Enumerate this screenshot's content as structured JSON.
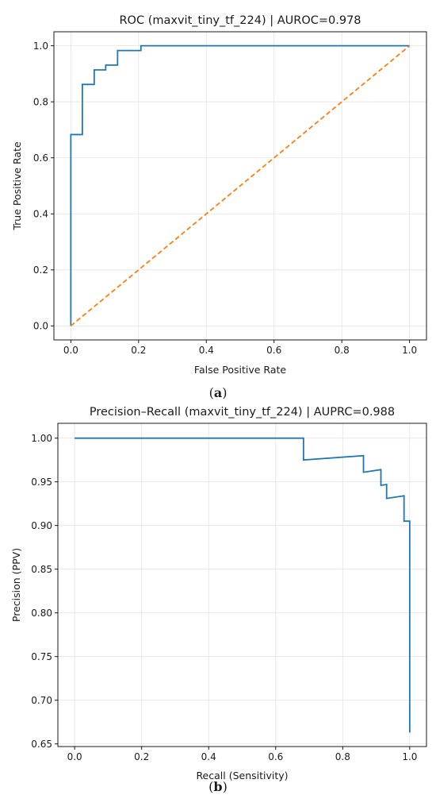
{
  "chart_data": [
    {
      "type": "line",
      "title": "ROC (maxvit_tiny_tf_224) | AUROC=0.978",
      "xlabel": "False Positive Rate",
      "ylabel": "True Positive Rate",
      "xlim": [
        -0.05,
        1.05
      ],
      "ylim": [
        -0.05,
        1.05
      ],
      "xticks": [
        0.0,
        0.2,
        0.4,
        0.6,
        0.8,
        1.0
      ],
      "yticks": [
        0.0,
        0.2,
        0.4,
        0.6,
        0.8,
        1.0
      ],
      "xtick_labels": [
        "0.0",
        "0.2",
        "0.4",
        "0.6",
        "0.8",
        "1.0"
      ],
      "ytick_labels": [
        "0.0",
        "0.2",
        "0.4",
        "0.6",
        "0.8",
        "1.0"
      ],
      "grid": true,
      "caption": {
        "open": "(",
        "letter": "a",
        "close": ")"
      },
      "series": [
        {
          "color": "#1f77b4",
          "dash": false,
          "x": [
            0,
            0,
            0.034,
            0.034,
            0.069,
            0.069,
            0.103,
            0.103,
            0.138,
            0.138,
            0.207,
            0.207,
            1.0
          ],
          "y": [
            0,
            0.683,
            0.683,
            0.862,
            0.862,
            0.914,
            0.914,
            0.931,
            0.931,
            0.983,
            0.983,
            1.0,
            1.0
          ]
        },
        {
          "color": "#ff7f0e",
          "dash": true,
          "x": [
            0,
            1
          ],
          "y": [
            0,
            1
          ]
        }
      ]
    },
    {
      "type": "line",
      "title": "Precision–Recall (maxvit_tiny_tf_224) | AUPRC=0.988",
      "xlabel": "Recall (Sensitivity)",
      "ylabel": "Precision (PPV)",
      "xlim": [
        -0.05,
        1.05
      ],
      "ylim": [
        0.647,
        1.017
      ],
      "xticks": [
        0.0,
        0.2,
        0.4,
        0.6,
        0.8,
        1.0
      ],
      "yticks": [
        0.65,
        0.7,
        0.75,
        0.8,
        0.85,
        0.9,
        0.95,
        1.0
      ],
      "xtick_labels": [
        "0.0",
        "0.2",
        "0.4",
        "0.6",
        "0.8",
        "1.0"
      ],
      "ytick_labels": [
        "0.65",
        "0.70",
        "0.75",
        "0.80",
        "0.85",
        "0.90",
        "0.95",
        "1.00"
      ],
      "grid": true,
      "caption": {
        "open": "(",
        "letter": "b",
        "close": ")"
      },
      "series": [
        {
          "color": "#1f77b4",
          "dash": false,
          "x": [
            0,
            0.683,
            0.683,
            0.862,
            0.862,
            0.914,
            0.914,
            0.931,
            0.931,
            0.983,
            0.983,
            1.0,
            1.0
          ],
          "y": [
            1.0,
            1.0,
            0.975,
            0.98,
            0.961,
            0.964,
            0.946,
            0.947,
            0.931,
            0.934,
            0.905,
            0.905,
            0.663
          ]
        }
      ]
    }
  ]
}
